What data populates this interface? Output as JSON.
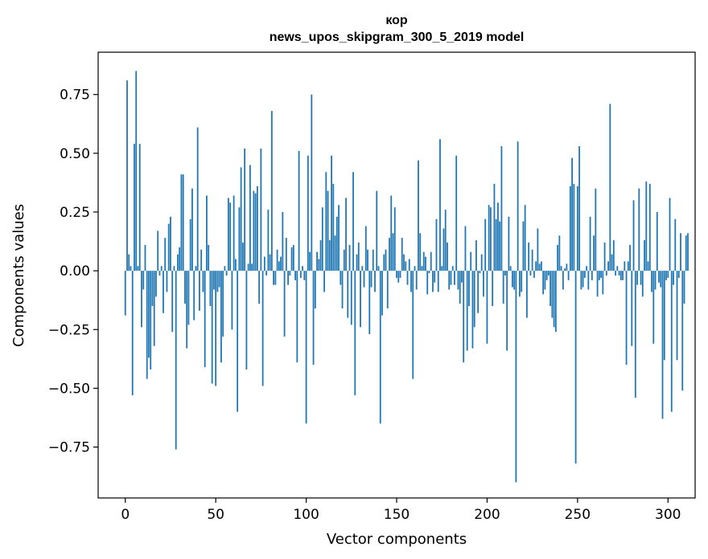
{
  "chart_data": {
    "type": "bar",
    "title": "кор",
    "subtitle": "news_upos_skipgram_300_5_2019 model",
    "xlabel": "Vector components",
    "ylabel": "Components values",
    "xlim": [
      -15,
      315
    ],
    "ylim": [
      -0.9666,
      0.93
    ],
    "xticks": [
      0,
      50,
      100,
      150,
      200,
      250,
      300
    ],
    "xtick_labels": [
      "0",
      "50",
      "100",
      "150",
      "200",
      "250",
      "300"
    ],
    "yticks": [
      -0.75,
      -0.5,
      -0.25,
      0.0,
      0.25,
      0.5,
      0.75
    ],
    "ytick_labels": [
      "−0.75",
      "−0.50",
      "−0.25",
      "0.00",
      "0.25",
      "0.50",
      "0.75"
    ],
    "bar_color": "#1f77b4",
    "grid": false,
    "values": [
      -0.19,
      0.81,
      0.07,
      0.02,
      -0.53,
      0.54,
      0.85,
      0.02,
      0.54,
      -0.24,
      -0.08,
      0.11,
      -0.46,
      -0.37,
      -0.42,
      -0.15,
      -0.32,
      -0.11,
      0.17,
      -0.02,
      0.02,
      -0.18,
      0.14,
      -0.09,
      0.2,
      0.23,
      -0.26,
      0.02,
      -0.76,
      0.07,
      0.1,
      0.41,
      0.41,
      -0.14,
      -0.33,
      -0.23,
      0.22,
      0.35,
      -0.21,
      0.02,
      0.61,
      -0.17,
      0.09,
      -0.09,
      -0.41,
      0.32,
      0.11,
      -0.15,
      -0.48,
      -0.08,
      -0.49,
      -0.09,
      -0.07,
      -0.39,
      -0.28,
      0.02,
      -0.02,
      0.31,
      0.29,
      -0.25,
      0.32,
      0.05,
      -0.6,
      0.27,
      0.44,
      0.12,
      0.52,
      -0.42,
      0.03,
      0.45,
      0.03,
      0.34,
      0.33,
      0.36,
      -0.14,
      0.52,
      -0.49,
      0.06,
      -0.02,
      0.26,
      0.07,
      0.68,
      -0.06,
      -0.06,
      0.09,
      0.04,
      0.06,
      0.25,
      -0.28,
      0.14,
      -0.06,
      -0.02,
      0.1,
      0.11,
      -0.04,
      -0.39,
      0.51,
      -0.03,
      0.02,
      -0.04,
      -0.65,
      0.49,
      0.08,
      0.75,
      -0.4,
      -0.16,
      0.08,
      0.05,
      0.13,
      0.27,
      -0.09,
      0.42,
      0.34,
      0.13,
      0.49,
      0.37,
      0.15,
      0.23,
      0.28,
      -0.06,
      -0.16,
      0.09,
      0.31,
      -0.2,
      0.11,
      -0.23,
      0.42,
      -0.53,
      0.07,
      0.12,
      -0.24,
      0.02,
      -0.07,
      0.19,
      0.09,
      -0.27,
      -0.07,
      0.09,
      -0.09,
      0.34,
      0.02,
      -0.65,
      -0.19,
      0.07,
      0.09,
      -0.16,
      0.14,
      0.32,
      0.16,
      0.27,
      -0.03,
      -0.05,
      -0.03,
      0.14,
      0.07,
      0.04,
      -0.06,
      0.05,
      -0.09,
      -0.46,
      0.02,
      -0.08,
      0.47,
      0.16,
      0.02,
      0.08,
      0.06,
      -0.1,
      -0.01,
      0.08,
      -0.09,
      -0.05,
      0.22,
      -0.09,
      0.56,
      0.02,
      0.18,
      0.26,
      0.12,
      -0.08,
      -0.06,
      0.02,
      -0.06,
      0.49,
      -0.08,
      -0.14,
      -0.05,
      -0.39,
      0.19,
      -0.34,
      -0.15,
      0.08,
      -0.33,
      -0.24,
      0.13,
      -0.18,
      -0.01,
      0.07,
      -0.11,
      0.22,
      -0.31,
      0.28,
      0.27,
      -0.15,
      0.37,
      0.22,
      0.29,
      0.21,
      0.53,
      -0.14,
      -0.02,
      -0.34,
      0.23,
      0.02,
      -0.07,
      -0.08,
      -0.9,
      0.55,
      -0.11,
      -0.09,
      0.21,
      0.28,
      -0.2,
      0.12,
      -0.02,
      0.09,
      -0.03,
      0.04,
      0.18,
      0.03,
      0.04,
      -0.1,
      -0.08,
      -0.04,
      -0.02,
      -0.15,
      -0.2,
      -0.24,
      -0.26,
      0.11,
      0.15,
      0.02,
      -0.08,
      0.01,
      0.03,
      -0.04,
      0.36,
      0.48,
      0.37,
      -0.82,
      0.36,
      0.53,
      -0.08,
      -0.07,
      -0.03,
      0.02,
      -0.08,
      0.23,
      -0.04,
      0.15,
      0.35,
      -0.11,
      -0.04,
      -0.03,
      -0.1,
      0.12,
      -0.02,
      0.04,
      0.71,
      0.07,
      0.13,
      -0.02,
      0.02,
      -0.02,
      -0.04,
      -0.04,
      0.04,
      -0.4,
      0.04,
      0.11,
      -0.32,
      0.3,
      -0.54,
      -0.06,
      0.35,
      -0.06,
      -0.11,
      0.13,
      0.38,
      0.04,
      0.37,
      -0.09,
      -0.31,
      -0.08,
      0.25,
      -0.05,
      -0.07,
      -0.63,
      -0.38,
      -0.04,
      -0.03,
      0.31,
      -0.6,
      -0.06,
      0.22,
      -0.38,
      -0.03,
      0.16,
      -0.51,
      -0.14,
      0.15,
      0.16
    ]
  }
}
